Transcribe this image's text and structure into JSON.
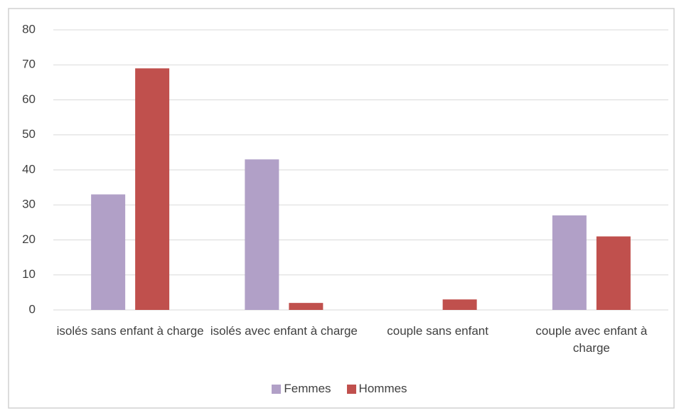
{
  "chart_data": {
    "type": "bar",
    "categories": [
      "isolés sans enfant à charge",
      "isolés avec enfant à charge",
      "couple sans enfant",
      "couple avec enfant à charge"
    ],
    "series": [
      {
        "name": "Femmes",
        "color": "#b1a0c7",
        "values": [
          33,
          43,
          0,
          27
        ]
      },
      {
        "name": "Hommes",
        "color": "#c0504d",
        "values": [
          69,
          2,
          3,
          21
        ]
      }
    ],
    "ylim": [
      0,
      80
    ],
    "yticks": [
      0,
      10,
      20,
      30,
      40,
      50,
      60,
      70,
      80
    ],
    "grid": true,
    "legend": "bottom"
  }
}
